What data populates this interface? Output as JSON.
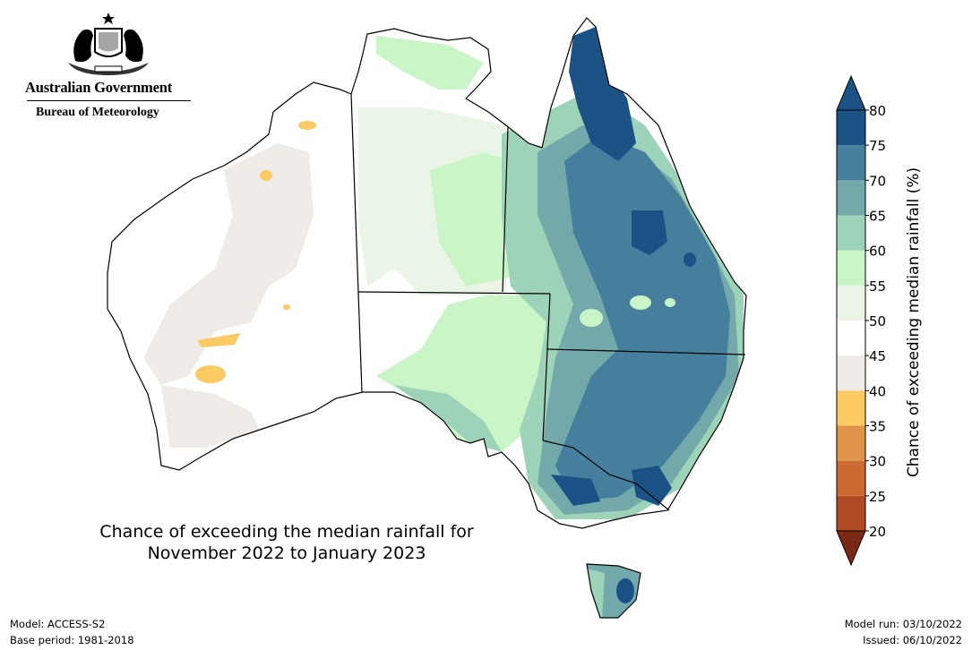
{
  "header": {
    "government_name": "Australian Government",
    "bureau_name": "Bureau of Meteorology"
  },
  "map": {
    "title_line1": "Chance of exceeding the median rainfall for",
    "title_line2": "November 2022 to January 2023"
  },
  "colorbar": {
    "title": "Chance of exceeding median rainfall (%)",
    "ticks": [
      "80",
      "75",
      "70",
      "65",
      "60",
      "55",
      "50",
      "45",
      "40",
      "35",
      "30",
      "25",
      "20"
    ],
    "colors": [
      "#7a2a14",
      "#b04a25",
      "#cc6a32",
      "#e0944a",
      "#fcca63",
      "#efebe6",
      "#ffffff",
      "#eaf5e8",
      "#c9f5c7",
      "#9dd3b8",
      "#74a9ab",
      "#467f9e",
      "#1a5285"
    ],
    "extend": "both"
  },
  "footer": {
    "model": "Model: ACCESS-S2",
    "base_period": "Base period: 1981-2018",
    "model_run": "Model run: 03/10/2022",
    "issued": "Issued: 06/10/2022"
  }
}
